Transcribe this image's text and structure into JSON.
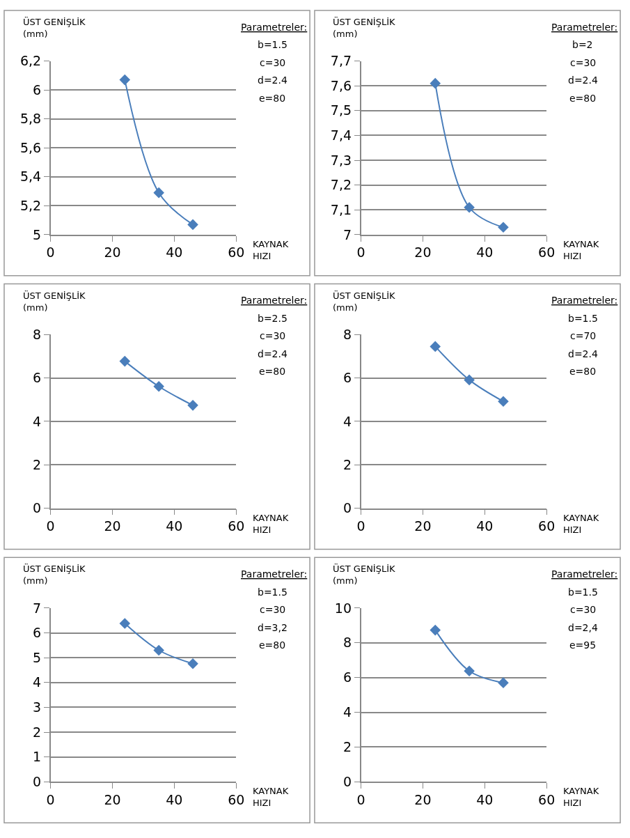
{
  "chart_data": [
    {
      "type": "line",
      "xlabel": "KAYNAK\nHIZI",
      "ylabel": "ÜST GENİŞLİK\n(mm)",
      "x": [
        24,
        35,
        46
      ],
      "series": [
        {
          "color": "#4a7ebb",
          "values": [
            6.07,
            5.29,
            5.07
          ]
        }
      ],
      "marker": "diamond",
      "line_style": "solid",
      "grid": "y",
      "xlim": [
        0,
        60
      ],
      "xticks": [
        0,
        20,
        40,
        60
      ],
      "ylim": [
        5,
        6.2
      ],
      "yticks": [
        5,
        {
          "value": 5.2,
          "label": "5,2"
        },
        {
          "value": 5.4,
          "label": "5,4"
        },
        {
          "value": 5.6,
          "label": "5,6"
        },
        {
          "value": 5.8,
          "label": "5,8"
        },
        6,
        {
          "value": 6.2,
          "label": "6,2"
        }
      ],
      "annotations": [
        "Parametreler:",
        "b=1.5",
        "c=30",
        "d=2.4",
        "e=80"
      ]
    },
    {
      "type": "line",
      "xlabel": "KAYNAK\nHIZI",
      "ylabel": "ÜST GENİŞLİK\n(mm)",
      "x": [
        24,
        35,
        46
      ],
      "series": [
        {
          "color": "#4a7ebb",
          "values": [
            7.61,
            7.11,
            7.03
          ]
        }
      ],
      "marker": "diamond",
      "line_style": "solid",
      "grid": "y",
      "xlim": [
        0,
        60
      ],
      "xticks": [
        0,
        20,
        40,
        60
      ],
      "ylim": [
        7,
        7.7
      ],
      "yticks": [
        7,
        {
          "value": 7.1,
          "label": "7,1"
        },
        {
          "value": 7.2,
          "label": "7,2"
        },
        {
          "value": 7.3,
          "label": "7,3"
        },
        {
          "value": 7.4,
          "label": "7,4"
        },
        {
          "value": 7.5,
          "label": "7,5"
        },
        {
          "value": 7.6,
          "label": "7,6"
        },
        {
          "value": 7.7,
          "label": "7,7"
        }
      ],
      "annotations": [
        "Parametreler:",
        "b=2",
        "c=30",
        "d=2.4",
        "e=80"
      ]
    },
    {
      "type": "line",
      "xlabel": "KAYNAK\nHIZI",
      "ylabel": "ÜST GENİŞLİK\n(mm)",
      "x": [
        24,
        35,
        46
      ],
      "series": [
        {
          "color": "#4a7ebb",
          "values": [
            6.77,
            5.61,
            4.74
          ]
        }
      ],
      "marker": "diamond",
      "line_style": "solid",
      "grid": "y",
      "xlim": [
        0,
        60
      ],
      "xticks": [
        0,
        20,
        40,
        60
      ],
      "ylim": [
        0,
        8
      ],
      "yticks": [
        0,
        2,
        4,
        6,
        8
      ],
      "annotations": [
        "Parametreler:",
        "b=2.5",
        "c=30",
        "d=2.4",
        "e=80"
      ]
    },
    {
      "type": "line",
      "xlabel": "KAYNAK\nHIZI",
      "ylabel": "ÜST GENİŞLİK\n(mm)",
      "x": [
        24,
        35,
        46
      ],
      "series": [
        {
          "color": "#4a7ebb",
          "values": [
            7.45,
            5.91,
            4.92
          ]
        }
      ],
      "marker": "diamond",
      "line_style": "solid",
      "grid": "y",
      "xlim": [
        0,
        60
      ],
      "xticks": [
        0,
        20,
        40,
        60
      ],
      "ylim": [
        0,
        8
      ],
      "yticks": [
        0,
        2,
        4,
        6,
        8
      ],
      "annotations": [
        "Parametreler:",
        "b=1.5",
        "c=70",
        "d=2.4",
        "e=80"
      ]
    },
    {
      "type": "line",
      "xlabel": "KAYNAK\nHIZI",
      "ylabel": "ÜST GENİŞLİK\n(mm)",
      "x": [
        24,
        35,
        46
      ],
      "series": [
        {
          "color": "#4a7ebb",
          "values": [
            6.38,
            5.3,
            4.76
          ]
        }
      ],
      "marker": "diamond",
      "line_style": "solid",
      "grid": "y",
      "xlim": [
        0,
        60
      ],
      "xticks": [
        0,
        20,
        40,
        60
      ],
      "ylim": [
        0,
        7
      ],
      "yticks": [
        0,
        1,
        2,
        3,
        4,
        5,
        6,
        7
      ],
      "annotations": [
        "Parametreler:",
        "b=1.5",
        "c=30",
        "d=3,2",
        "e=80"
      ]
    },
    {
      "type": "line",
      "xlabel": "KAYNAK\nHIZI",
      "ylabel": "ÜST GENİŞLİK\n(mm)",
      "x": [
        24,
        35,
        46
      ],
      "series": [
        {
          "color": "#4a7ebb",
          "values": [
            8.73,
            6.38,
            5.7
          ]
        }
      ],
      "marker": "diamond",
      "line_style": "solid",
      "grid": "y",
      "xlim": [
        0,
        60
      ],
      "xticks": [
        0,
        20,
        40,
        60
      ],
      "ylim": [
        0,
        10
      ],
      "yticks": [
        0,
        2,
        4,
        6,
        8,
        10
      ],
      "annotations": [
        "Parametreler:",
        "b=1.5",
        "c=30",
        "d=2,4",
        "e=95"
      ]
    }
  ]
}
